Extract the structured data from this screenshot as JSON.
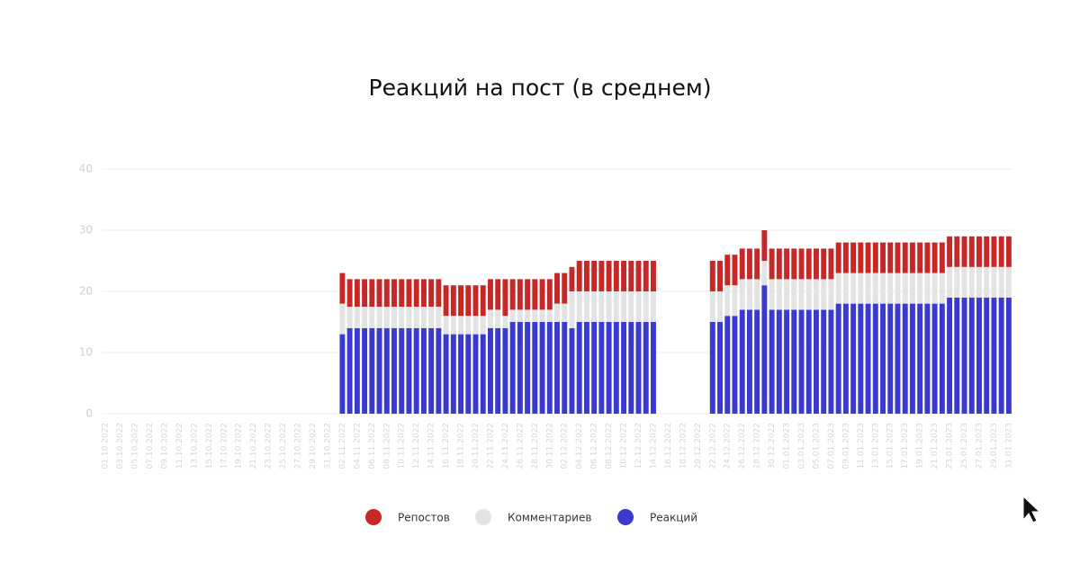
{
  "chart_data": {
    "type": "bar",
    "stacked": true,
    "title": "Реакций на пост (в среднем)",
    "categories": [
      "01.10.2022",
      null,
      "03.10.2022",
      null,
      "05.10.2022",
      null,
      "07.10.2022",
      null,
      "09.10.2022",
      null,
      "11.10.2022",
      null,
      "13.10.2022",
      null,
      "15.10.2022",
      null,
      "17.10.2022",
      null,
      "19.10.2022",
      null,
      "21.10.2022",
      null,
      "23.10.2022",
      null,
      "25.10.2022",
      null,
      "27.10.2022",
      null,
      "29.10.2022",
      null,
      "31.10.2022",
      null,
      "02.11.2022",
      null,
      "04.11.2022",
      null,
      "06.11.2022",
      null,
      "08.11.2022",
      null,
      "10.11.2022",
      null,
      "12.11.2022",
      null,
      "14.11.2022",
      null,
      "16.11.2022",
      null,
      "18.11.2022",
      null,
      "20.11.2022",
      null,
      "22.11.2022",
      null,
      "24.11.2022",
      null,
      "26.11.2022",
      null,
      "28.11.2022",
      null,
      "30.11.2022",
      null,
      "02.12.2022",
      null,
      "04.12.2022",
      null,
      "06.12.2022",
      null,
      "08.12.2022",
      null,
      "10.12.2022",
      null,
      "12.12.2022",
      null,
      "14.12.2022",
      null,
      "16.12.2022",
      null,
      "18.12.2022",
      null,
      "20.12.2022",
      null,
      "22.12.2022",
      null,
      "24.12.2022",
      null,
      "26.12.2022",
      null,
      "28.12.2022",
      null,
      "30.12.2022",
      null,
      "01.01.2023",
      null,
      "03.01.2023",
      null,
      "05.01.2023",
      null,
      "07.01.2023",
      null,
      "09.01.2023",
      null,
      "11.01.2023",
      null,
      "13.01.2023",
      null,
      "15.01.2023",
      null,
      "17.01.2023",
      null,
      "19.01.2023",
      null,
      "21.01.2023",
      null,
      "23.01.2023",
      null,
      "25.01.2023",
      null,
      "27.01.2023",
      null,
      "29.01.2023",
      null,
      "31.01.2023"
    ],
    "series": [
      {
        "name": "Репостов",
        "color": "#c62828",
        "values": [
          null,
          null,
          null,
          null,
          null,
          null,
          null,
          null,
          null,
          null,
          null,
          null,
          null,
          null,
          null,
          null,
          null,
          null,
          null,
          null,
          null,
          null,
          null,
          null,
          null,
          null,
          null,
          null,
          null,
          null,
          null,
          null,
          5,
          4.5,
          4.5,
          4.5,
          4.5,
          4.5,
          4.5,
          4.5,
          4.5,
          4.5,
          4.5,
          4.5,
          4.5,
          4.5,
          5,
          5,
          5,
          5,
          5,
          5,
          5,
          5,
          6,
          5,
          5,
          5,
          5,
          5,
          5,
          5,
          5,
          4,
          5,
          5,
          5,
          5,
          5,
          5,
          5,
          5,
          5,
          5,
          5,
          null,
          null,
          null,
          null,
          null,
          null,
          null,
          5,
          5,
          5,
          5,
          5,
          5,
          5,
          5,
          5,
          5,
          5,
          5,
          5,
          5,
          5,
          5,
          5,
          5,
          5,
          5,
          5,
          5,
          5,
          5,
          5,
          5,
          5,
          5,
          5,
          5,
          5,
          5,
          5,
          5,
          5,
          5,
          5,
          5,
          5,
          5,
          5
        ]
      },
      {
        "name": "Комментариев",
        "color": "#e3e3e3",
        "values": [
          null,
          null,
          null,
          null,
          null,
          null,
          null,
          null,
          null,
          null,
          null,
          null,
          null,
          null,
          null,
          null,
          null,
          null,
          null,
          null,
          null,
          null,
          null,
          null,
          null,
          null,
          null,
          null,
          null,
          null,
          null,
          null,
          5,
          3.5,
          3.5,
          3.5,
          3.5,
          3.5,
          3.5,
          3.5,
          3.5,
          3.5,
          3.5,
          3.5,
          3.5,
          3.5,
          3,
          3,
          3,
          3,
          3,
          3,
          3,
          3,
          2,
          2,
          2,
          2,
          2,
          2,
          2,
          3,
          3,
          6,
          5,
          5,
          5,
          5,
          5,
          5,
          5,
          5,
          5,
          5,
          5,
          null,
          null,
          null,
          null,
          null,
          null,
          null,
          5,
          5,
          5,
          5,
          5,
          5,
          5,
          4,
          5,
          5,
          5,
          5,
          5,
          5,
          5,
          5,
          5,
          5,
          5,
          5,
          5,
          5,
          5,
          5,
          5,
          5,
          5,
          5,
          5,
          5,
          5,
          5,
          5,
          5,
          5,
          5,
          5,
          5,
          5,
          5,
          5
        ]
      },
      {
        "name": "Реакций",
        "color": "#3a3ad0",
        "values": [
          null,
          null,
          null,
          null,
          null,
          null,
          null,
          null,
          null,
          null,
          null,
          null,
          null,
          null,
          null,
          null,
          null,
          null,
          null,
          null,
          null,
          null,
          null,
          null,
          null,
          null,
          null,
          null,
          null,
          null,
          null,
          null,
          13,
          14,
          14,
          14,
          14,
          14,
          14,
          14,
          14,
          14,
          14,
          14,
          14,
          14,
          13,
          13,
          13,
          13,
          13,
          13,
          14,
          14,
          14,
          15,
          15,
          15,
          15,
          15,
          15,
          15,
          15,
          14,
          15,
          15,
          15,
          15,
          15,
          15,
          15,
          15,
          15,
          15,
          15,
          null,
          null,
          null,
          null,
          null,
          null,
          null,
          15,
          15,
          16,
          16,
          17,
          17,
          17,
          21,
          17,
          17,
          17,
          17,
          17,
          17,
          17,
          17,
          17,
          18,
          18,
          18,
          18,
          18,
          18,
          18,
          18,
          18,
          18,
          18,
          18,
          18,
          18,
          18,
          19,
          19,
          19,
          19,
          19,
          19,
          19,
          19,
          19
        ]
      }
    ],
    "ylim": [
      0,
      40
    ],
    "yticks": [
      0,
      10,
      20,
      30,
      40
    ],
    "grid": true,
    "legend": "bottom"
  }
}
